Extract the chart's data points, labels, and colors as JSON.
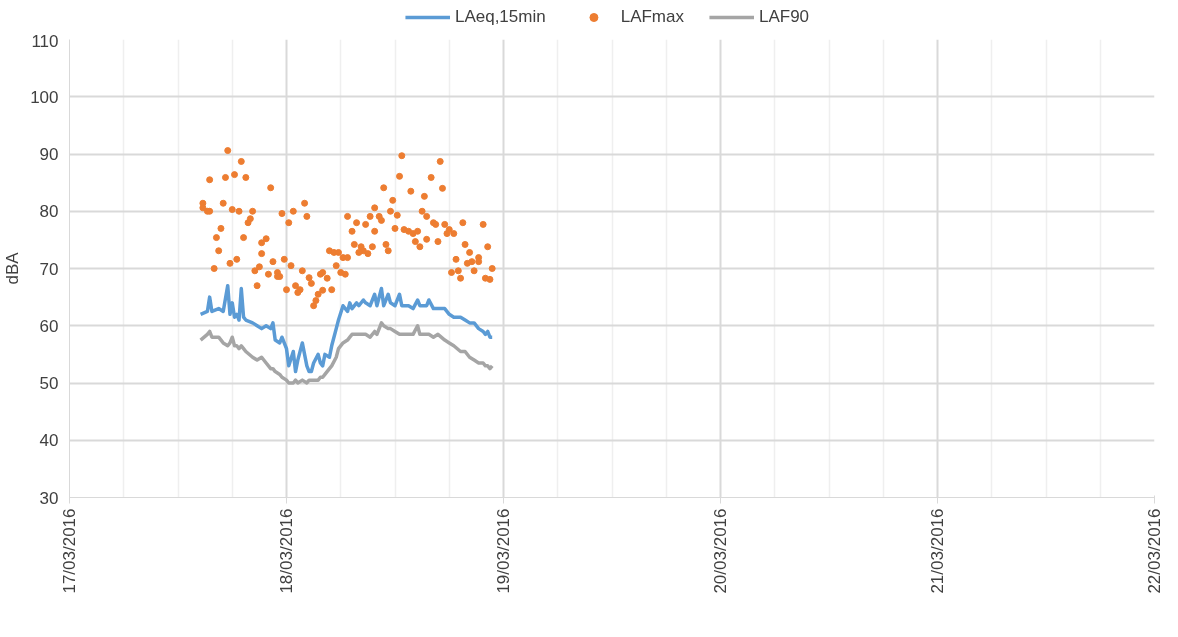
{
  "chart_data": {
    "type": "line",
    "ylabel": "dBA",
    "x": [
      "2016-03-17T14:30",
      "2016-03-17T15:15",
      "2016-03-17T15:30",
      "2016-03-17T15:45",
      "2016-03-17T16:30",
      "2016-03-17T17:00",
      "2016-03-17T17:30",
      "2016-03-17T17:45",
      "2016-03-17T18:00",
      "2016-03-17T18:15",
      "2016-03-17T18:30",
      "2016-03-17T18:45",
      "2016-03-17T19:00",
      "2016-03-17T19:15",
      "2016-03-17T19:30",
      "2016-03-17T20:15",
      "2016-03-17T20:45",
      "2016-03-17T21:15",
      "2016-03-17T21:45",
      "2016-03-17T22:15",
      "2016-03-17T22:30",
      "2016-03-17T22:45",
      "2016-03-17T23:15",
      "2016-03-17T23:30",
      "2016-03-18T00:00",
      "2016-03-18T00:15",
      "2016-03-18T00:45",
      "2016-03-18T01:00",
      "2016-03-18T01:15",
      "2016-03-18T01:45",
      "2016-03-18T02:15",
      "2016-03-18T02:30",
      "2016-03-18T02:45",
      "2016-03-18T03:00",
      "2016-03-18T03:30",
      "2016-03-18T03:45",
      "2016-03-18T04:00",
      "2016-03-18T04:15",
      "2016-03-18T04:45",
      "2016-03-18T05:00",
      "2016-03-18T05:30",
      "2016-03-18T05:45",
      "2016-03-18T06:15",
      "2016-03-18T06:45",
      "2016-03-18T07:00",
      "2016-03-18T07:15",
      "2016-03-18T07:45",
      "2016-03-18T08:00",
      "2016-03-18T08:30",
      "2016-03-18T08:45",
      "2016-03-18T09:15",
      "2016-03-18T09:45",
      "2016-03-18T10:00",
      "2016-03-18T10:30",
      "2016-03-18T10:45",
      "2016-03-18T11:15",
      "2016-03-18T11:30",
      "2016-03-18T12:00",
      "2016-03-18T12:30",
      "2016-03-18T12:45",
      "2016-03-18T13:30",
      "2016-03-18T14:00",
      "2016-03-18T14:30",
      "2016-03-18T14:45",
      "2016-03-18T15:30",
      "2016-03-18T15:45",
      "2016-03-18T16:15",
      "2016-03-18T16:45",
      "2016-03-18T17:30",
      "2016-03-18T18:00",
      "2016-03-18T18:30",
      "2016-03-18T19:15",
      "2016-03-18T19:45",
      "2016-03-18T20:15",
      "2016-03-18T20:45",
      "2016-03-18T21:15",
      "2016-03-18T21:45",
      "2016-03-18T22:00",
      "2016-03-18T22:15",
      "2016-03-18T22:30",
      "2016-03-18T22:45"
    ],
    "series": [
      {
        "name": "LAeq,15min",
        "color": "#5b9bd5",
        "values": [
          62,
          62.5,
          65,
          62.5,
          63,
          62.5,
          67,
          62,
          64,
          61.5,
          62,
          61,
          66.5,
          61.5,
          61,
          60.5,
          60,
          59.5,
          60,
          59.5,
          60.5,
          57.5,
          57,
          58,
          56,
          53,
          55.5,
          52,
          54,
          57,
          53,
          52,
          52,
          53.5,
          55,
          53.5,
          53,
          55,
          54.5,
          56.5,
          59.5,
          61,
          63.5,
          62.5,
          64,
          63,
          64,
          63.5,
          64.5,
          64,
          63.5,
          65.5,
          63.5,
          66.5,
          63.5,
          65.5,
          64,
          63.5,
          65.5,
          63.5,
          63.5,
          63,
          64.5,
          63.5,
          63.5,
          64.5,
          63,
          63,
          63,
          62,
          61.5,
          61.5,
          61,
          60.5,
          60.5,
          59.5,
          59,
          58.5,
          59,
          58,
          58
        ]
      },
      {
        "name": "LAFmax",
        "type": "scatter",
        "marker": "circle",
        "color": "#ed7d31",
        "x": [
          "2016-03-17T17:30",
          "2016-03-17T19:00",
          "2016-03-17T15:30",
          "2016-03-17T17:15",
          "2016-03-17T18:15",
          "2016-03-17T19:30",
          "2016-03-17T22:15",
          "2016-03-17T14:45",
          "2016-03-17T14:45",
          "2016-03-17T15:15",
          "2016-03-17T15:30",
          "2016-03-17T17:00",
          "2016-03-17T18:00",
          "2016-03-17T18:45",
          "2016-03-17T20:15",
          "2016-03-17T23:30",
          "2016-03-18T00:45",
          "2016-03-18T02:00",
          "2016-03-18T02:15",
          "2016-03-18T00:15",
          "2016-03-17T20:00",
          "2016-03-17T19:45",
          "2016-03-17T16:45",
          "2016-03-17T16:15",
          "2016-03-17T19:15",
          "2016-03-17T16:30",
          "2016-03-17T21:45",
          "2016-03-17T21:15",
          "2016-03-17T21:15",
          "2016-03-17T16:00",
          "2016-03-17T17:45",
          "2016-03-17T18:30",
          "2016-03-17T22:30",
          "2016-03-17T23:45",
          "2016-03-18T00:30",
          "2016-03-17T20:30",
          "2016-03-17T21:00",
          "2016-03-17T22:00",
          "2016-03-17T23:00",
          "2016-03-17T23:00",
          "2016-03-17T23:15",
          "2016-03-17T20:45",
          "2016-03-18T01:45",
          "2016-03-18T02:30",
          "2016-03-18T02:45",
          "2016-03-18T00:00",
          "2016-03-18T01:00",
          "2016-03-18T01:30",
          "2016-03-18T01:15",
          "2016-03-18T03:30",
          "2016-03-18T03:15",
          "2016-03-18T03:00",
          "2016-03-18T04:00",
          "2016-03-18T03:45",
          "2016-03-18T04:00",
          "2016-03-18T04:30",
          "2016-03-18T05:00",
          "2016-03-18T04:45",
          "2016-03-18T05:15",
          "2016-03-18T05:45",
          "2016-03-18T06:15",
          "2016-03-18T05:30",
          "2016-03-18T06:00",
          "2016-03-18T06:30",
          "2016-03-18T06:45",
          "2016-03-18T06:45",
          "2016-03-18T12:45",
          "2016-03-18T17:00",
          "2016-03-18T12:30",
          "2016-03-18T16:00",
          "2016-03-18T10:45",
          "2016-03-18T17:15",
          "2016-03-18T13:45",
          "2016-03-18T15:15",
          "2016-03-18T11:45",
          "2016-03-18T09:45",
          "2016-03-18T11:30",
          "2016-03-18T15:00",
          "2016-03-18T07:45",
          "2016-03-18T09:15",
          "2016-03-18T10:15",
          "2016-03-18T10:30",
          "2016-03-18T12:15",
          "2016-03-18T15:30",
          "2016-03-18T16:15",
          "2016-03-18T16:30",
          "2016-03-18T08:45",
          "2016-03-18T07:15",
          "2016-03-18T09:45",
          "2016-03-18T12:00",
          "2016-03-18T13:00",
          "2016-03-18T13:30",
          "2016-03-18T14:00",
          "2016-03-18T14:30",
          "2016-03-18T17:30",
          "2016-03-18T18:00",
          "2016-03-18T17:45",
          "2016-03-18T18:30",
          "2016-03-18T19:30",
          "2016-03-18T21:45",
          "2016-03-18T07:30",
          "2016-03-18T08:15",
          "2016-03-18T08:30",
          "2016-03-18T08:00",
          "2016-03-18T09:00",
          "2016-03-18T09:30",
          "2016-03-18T11:00",
          "2016-03-18T11:15",
          "2016-03-18T14:15",
          "2016-03-18T15:30",
          "2016-03-18T14:45",
          "2016-03-18T16:45",
          "2016-03-18T19:45",
          "2016-03-18T20:15",
          "2016-03-18T22:15",
          "2016-03-18T18:45",
          "2016-03-18T20:00",
          "2016-03-18T20:30",
          "2016-03-18T21:15",
          "2016-03-18T21:15",
          "2016-03-18T18:15",
          "2016-03-18T19:00",
          "2016-03-18T19:15",
          "2016-03-18T20:45",
          "2016-03-18T22:00",
          "2016-03-18T22:30",
          "2016-03-18T22:45"
        ],
        "values": [
          90.6,
          88.7,
          85.5,
          85.9,
          86.4,
          85.9,
          84.1,
          81.4,
          80.6,
          80,
          80,
          81.4,
          80.3,
          80,
          80,
          79.6,
          80,
          81.4,
          79.1,
          78,
          78.7,
          78,
          77,
          75.4,
          75.4,
          73.1,
          75.2,
          74.5,
          72.6,
          70,
          70.9,
          71.6,
          71.2,
          71.6,
          70.5,
          69.6,
          70.3,
          69,
          69.3,
          68.6,
          68.6,
          67,
          69.6,
          68.4,
          67.4,
          66.3,
          67,
          66.3,
          65.8,
          65.5,
          64.4,
          63.5,
          66.2,
          69,
          69.3,
          68.3,
          66.3,
          73.1,
          72.8,
          72.8,
          71.9,
          70.5,
          69.3,
          69,
          79.1,
          71.9,
          89.7,
          88.7,
          86.1,
          85.9,
          84.1,
          84,
          83.5,
          82.6,
          81.9,
          80.6,
          80,
          80,
          78,
          79.1,
          79.1,
          78.4,
          79.3,
          79.1,
          78,
          77.7,
          77.7,
          76.5,
          76.5,
          77,
          76.8,
          76.5,
          76.1,
          76.5,
          77.7,
          76.8,
          76.1,
          76.1,
          78,
          77.7,
          74.2,
          73.8,
          73.1,
          72.8,
          72.6,
          73.8,
          74.2,
          73.1,
          74.7,
          75.1,
          73.8,
          74.7,
          74.2,
          72.8,
          73.8,
          71.6,
          70.9,
          71.2,
          71.9,
          71.2,
          69.3,
          69.6,
          68.3,
          69.6,
          68.3,
          68.1,
          70
        ]
      },
      {
        "name": "LAF90",
        "color": "#a5a5a5",
        "values": [
          57.5,
          58.5,
          59,
          58,
          58,
          57,
          56.5,
          57,
          58,
          56.5,
          56.5,
          56,
          56.5,
          56,
          55.5,
          54.5,
          54,
          54.5,
          53.5,
          52.5,
          52.5,
          52,
          51.5,
          51,
          50.5,
          50,
          50,
          50.5,
          50,
          50.5,
          50,
          50.5,
          50.5,
          50.5,
          50.5,
          51,
          51,
          51.5,
          52.5,
          53,
          54.5,
          56,
          57,
          57.5,
          58,
          58.5,
          58.5,
          58.5,
          58.5,
          58.5,
          58,
          59,
          58.5,
          60.5,
          60,
          59.5,
          59.5,
          59,
          58.5,
          58.5,
          58.5,
          58.5,
          60,
          58.5,
          58.5,
          58.5,
          58,
          58.5,
          57.5,
          57,
          56.5,
          55.5,
          55.5,
          54.5,
          54,
          53.5,
          53.5,
          53,
          53,
          52.5,
          53
        ]
      }
    ],
    "xlim": [
      "2016-03-17",
      "2016-03-22"
    ],
    "xticks": [
      {
        "value": "2016-03-17",
        "label": "17/03/2016"
      },
      {
        "value": "2016-03-17T06:00",
        "label": null
      },
      {
        "value": "2016-03-17T12:00",
        "label": null
      },
      {
        "value": "2016-03-17T18:00",
        "label": null
      },
      {
        "value": "2016-03-18",
        "label": "18/03/2016"
      },
      {
        "value": "2016-03-18T06:00",
        "label": null
      },
      {
        "value": "2016-03-18T12:00",
        "label": null
      },
      {
        "value": "2016-03-18T18:00",
        "label": null
      },
      {
        "value": "2016-03-19",
        "label": "19/03/2016"
      },
      {
        "value": "2016-03-19T06:00",
        "label": null
      },
      {
        "value": "2016-03-19T12:00",
        "label": null
      },
      {
        "value": "2016-03-19T18:00",
        "label": null
      },
      {
        "value": "2016-03-20",
        "label": "20/03/2016"
      },
      {
        "value": "2016-03-20T06:00",
        "label": null
      },
      {
        "value": "2016-03-20T12:00",
        "label": null
      },
      {
        "value": "2016-03-20T18:00",
        "label": null
      },
      {
        "value": "2016-03-21",
        "label": "21/03/2016"
      },
      {
        "value": "2016-03-21T06:00",
        "label": null
      },
      {
        "value": "2016-03-21T12:00",
        "label": null
      },
      {
        "value": "2016-03-21T18:00",
        "label": null
      },
      {
        "value": "2016-03-22",
        "label": "22/03/2016"
      }
    ],
    "ylim": [
      30,
      110
    ],
    "yticks": [
      30,
      40,
      50,
      60,
      70,
      80,
      90,
      100,
      110
    ],
    "grid": true,
    "legend": "top"
  }
}
